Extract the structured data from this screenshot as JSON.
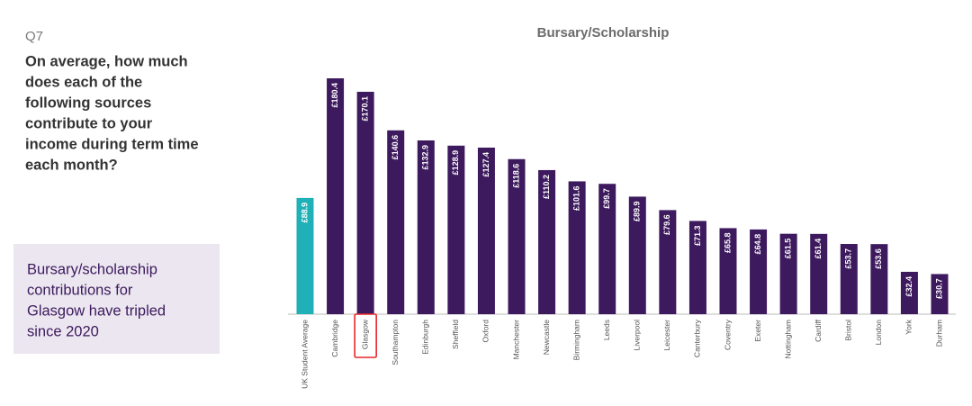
{
  "question": {
    "number": "Q7",
    "lines": [
      "On average, how much",
      "does each of the",
      "following sources",
      "contribute to your",
      "income during term time",
      "each month?"
    ]
  },
  "callout": {
    "lines": [
      "Bursary/scholarship",
      "contributions for",
      "Glasgow have tripled",
      "since 2020"
    ]
  },
  "chart_data": {
    "type": "bar",
    "title": "Bursary/Scholarship",
    "categories": [
      "UK Student Average",
      "Cambridge",
      "Glasgow",
      "Southampton",
      "Edinburgh",
      "Sheffield",
      "Oxford",
      "Manchester",
      "Newcastle",
      "Birmingham",
      "Leeds",
      "Liverpool",
      "Leicester",
      "Canterbury",
      "Coventry",
      "Exeter",
      "Nottingham",
      "Cardiff",
      "Bristol",
      "London",
      "York",
      "Durham"
    ],
    "values": [
      88.9,
      180.4,
      170.1,
      140.6,
      132.9,
      128.9,
      127.4,
      118.6,
      110.2,
      101.6,
      99.7,
      89.9,
      79.6,
      71.3,
      65.8,
      64.8,
      61.5,
      61.4,
      53.7,
      53.6,
      32.4,
      30.7
    ],
    "value_labels": [
      "£88.9",
      "£180.4",
      "£170.1",
      "£140.6",
      "£132.9",
      "£128.9",
      "£127.4",
      "£118.6",
      "£110.2",
      "£101.6",
      "£99.7",
      "£89.9",
      "£79.6",
      "£71.3",
      "£65.8",
      "£64.8",
      "£61.5",
      "£61.4",
      "£53.7",
      "£53.6",
      "£32.4",
      "£30.7"
    ],
    "colors": [
      "#1fb1b7",
      "#3d1a5e",
      "#3d1a5e",
      "#3d1a5e",
      "#3d1a5e",
      "#3d1a5e",
      "#3d1a5e",
      "#3d1a5e",
      "#3d1a5e",
      "#3d1a5e",
      "#3d1a5e",
      "#3d1a5e",
      "#3d1a5e",
      "#3d1a5e",
      "#3d1a5e",
      "#3d1a5e",
      "#3d1a5e",
      "#3d1a5e",
      "#3d1a5e",
      "#3d1a5e",
      "#3d1a5e",
      "#3d1a5e"
    ],
    "label_box": {
      "category_index": 2,
      "color": "#e8262a"
    }
  }
}
